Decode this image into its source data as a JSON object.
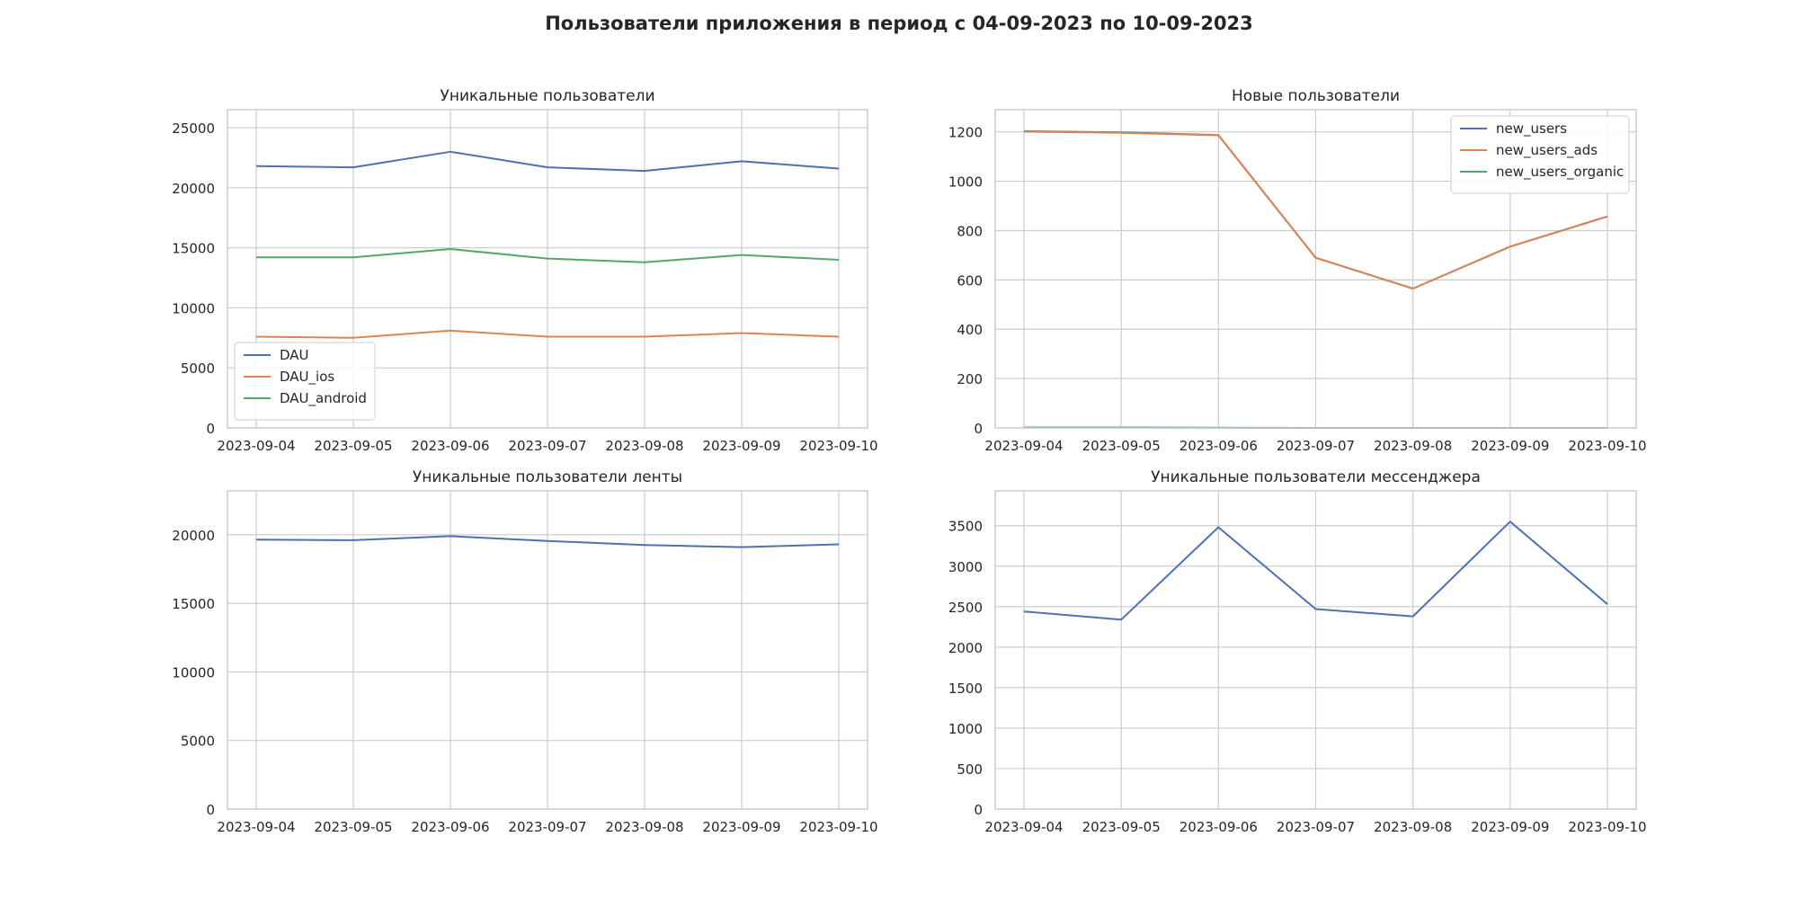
{
  "figure": {
    "title": "Пользователи приложения в период с 04-09-2023 по 10-09-2023"
  },
  "colors": {
    "blue": "#4c72b0",
    "orange": "#dd8452",
    "green": "#55a868",
    "grid": "#cccccc",
    "frame": "#cccccc",
    "text": "#262626"
  },
  "chart_data": [
    {
      "type": "line",
      "title": "Уникальные пользователи",
      "x": [
        "2023-09-04",
        "2023-09-05",
        "2023-09-06",
        "2023-09-07",
        "2023-09-08",
        "2023-09-09",
        "2023-09-10"
      ],
      "ylim": [
        0,
        26500
      ],
      "yticks": [
        0,
        5000,
        10000,
        15000,
        20000,
        25000
      ],
      "grid": true,
      "legend": "lower-left",
      "series": [
        {
          "name": "DAU",
          "color": "blue",
          "values": [
            21800,
            21700,
            23000,
            21700,
            21400,
            22200,
            21600
          ]
        },
        {
          "name": "DAU_ios",
          "color": "orange",
          "values": [
            7600,
            7500,
            8100,
            7600,
            7600,
            7900,
            7600
          ]
        },
        {
          "name": "DAU_android",
          "color": "green",
          "values": [
            14200,
            14200,
            14900,
            14100,
            13800,
            14400,
            14000
          ]
        }
      ]
    },
    {
      "type": "line",
      "title": "Новые пользователи",
      "x": [
        "2023-09-04",
        "2023-09-05",
        "2023-09-06",
        "2023-09-07",
        "2023-09-08",
        "2023-09-09",
        "2023-09-10"
      ],
      "ylim": [
        0,
        1290
      ],
      "yticks": [
        0,
        200,
        400,
        600,
        800,
        1000,
        1200
      ],
      "grid": true,
      "legend": "upper-right",
      "series": [
        {
          "name": "new_users",
          "color": "blue",
          "values": [
            1203,
            1198,
            1187,
            690,
            565,
            735,
            857
          ]
        },
        {
          "name": "new_users_ads",
          "color": "orange",
          "values": [
            1201,
            1196,
            1186,
            690,
            565,
            735,
            857
          ]
        },
        {
          "name": "new_users_organic",
          "color": "green",
          "values": [
            2,
            2,
            1,
            0,
            0,
            0,
            0
          ]
        }
      ]
    },
    {
      "type": "line",
      "title": "Уникальные пользователи ленты",
      "x": [
        "2023-09-04",
        "2023-09-05",
        "2023-09-06",
        "2023-09-07",
        "2023-09-08",
        "2023-09-09",
        "2023-09-10"
      ],
      "ylim": [
        0,
        23200
      ],
      "yticks": [
        0,
        5000,
        10000,
        15000,
        20000
      ],
      "grid": true,
      "series": [
        {
          "name": "",
          "color": "blue",
          "values": [
            19650,
            19600,
            19900,
            19550,
            19250,
            19100,
            19300
          ]
        }
      ]
    },
    {
      "type": "line",
      "title": "Уникальные пользователи мессенджера",
      "x": [
        "2023-09-04",
        "2023-09-05",
        "2023-09-06",
        "2023-09-07",
        "2023-09-08",
        "2023-09-09",
        "2023-09-10"
      ],
      "ylim": [
        0,
        3930
      ],
      "yticks": [
        0,
        500,
        1000,
        1500,
        2000,
        2500,
        3000,
        3500
      ],
      "grid": true,
      "series": [
        {
          "name": "",
          "color": "blue",
          "values": [
            2440,
            2340,
            3480,
            2470,
            2380,
            3550,
            2530
          ]
        }
      ]
    }
  ]
}
